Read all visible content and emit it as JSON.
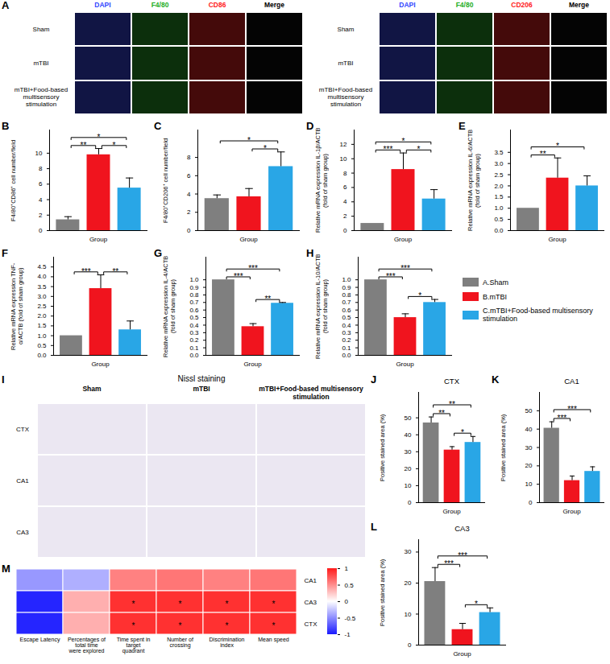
{
  "chart_data": [
    {
      "type": "legend",
      "legend": "right",
      "series": [
        {
          "name": "A.Sham",
          "color": "#7f7f7f"
        },
        {
          "name": "B.mTBI",
          "color": "#f0141e"
        },
        {
          "name": "C.mTBI+Food-based multisensory stimulation",
          "color": "#29a6e6"
        }
      ]
    },
    {
      "panel": "B",
      "type": "bar",
      "ylabel": "F4/80⁺CD86⁺ cell number/field",
      "xlabel": "Group",
      "tick_labels": "y",
      "values": [
        1.4,
        9.8,
        5.5
      ],
      "errors": [
        0.4,
        0.8,
        1.3
      ],
      "ylim": [
        0,
        13
      ],
      "yticks": [
        0,
        2,
        4,
        6,
        8,
        10
      ],
      "significance": [
        {
          "from": 0,
          "to": 1,
          "label": "**"
        },
        {
          "from": 1,
          "to": 2,
          "label": "*"
        },
        {
          "from": 0,
          "to": 2,
          "label": "*"
        }
      ]
    },
    {
      "panel": "C",
      "type": "bar",
      "ylabel": "F4/80⁺CD206⁺ cell number/field",
      "xlabel": "Group",
      "tick_labels": "y",
      "values": [
        3.5,
        3.7,
        7.0
      ],
      "errors": [
        0.4,
        0.9,
        1.6
      ],
      "ylim": [
        0,
        11
      ],
      "yticks": [
        0,
        2,
        4,
        6,
        8
      ],
      "significance": [
        {
          "from": 1,
          "to": 2,
          "label": "*"
        },
        {
          "from": 0,
          "to": 2,
          "label": "*"
        }
      ]
    },
    {
      "panel": "D",
      "type": "bar",
      "ylabel": "Relative mRNA expression IL-1β/ACTB (fold of sham group)",
      "xlabel": "Group",
      "tick_labels": "y",
      "values": [
        1.0,
        8.5,
        4.4
      ],
      "errors": [
        0,
        2.3,
        1.3
      ],
      "ylim": [
        0,
        14
      ],
      "yticks": [
        0,
        2,
        4,
        6,
        8,
        10,
        12
      ],
      "significance": [
        {
          "from": 0,
          "to": 1,
          "label": "***"
        },
        {
          "from": 1,
          "to": 2,
          "label": "*"
        },
        {
          "from": 0,
          "to": 2,
          "label": "*"
        }
      ]
    },
    {
      "panel": "E",
      "type": "bar",
      "ylabel": "Relative mRNA expression IL-6/ACTB (fold of sham group)",
      "xlabel": "Group",
      "tick_labels": "y",
      "values": [
        1.0,
        2.35,
        2.0
      ],
      "errors": [
        0,
        0.9,
        0.45
      ],
      "ylim": [
        0,
        4.5
      ],
      "yticks": [
        {
          "value": 0,
          "label": "0.0"
        },
        0.5,
        {
          "value": 1,
          "label": "1.0"
        },
        1.5,
        {
          "value": 2,
          "label": "2.0"
        },
        2.5,
        {
          "value": 3,
          "label": "3.0"
        },
        3.5
      ],
      "significance": [
        {
          "from": 0,
          "to": 1,
          "label": "**"
        },
        {
          "from": 0,
          "to": 2,
          "label": "*"
        }
      ]
    },
    {
      "panel": "F",
      "type": "bar",
      "ylabel": "Relative mRNA expression TNF-α/ACTB (fold of sham group)",
      "xlabel": "Group",
      "tick_labels": "y",
      "values": [
        1.0,
        3.4,
        1.3
      ],
      "errors": [
        0,
        0.7,
        0.45
      ],
      "ylim": [
        0,
        5
      ],
      "yticks": [
        {
          "value": 0,
          "label": "0.0"
        },
        0.5,
        {
          "value": 1,
          "label": "1.0"
        },
        1.5,
        {
          "value": 2,
          "label": "2.0"
        },
        2.5,
        {
          "value": 3,
          "label": "3.0"
        },
        3.5,
        {
          "value": 4,
          "label": "4.0"
        },
        4.5
      ],
      "significance": [
        {
          "from": 0,
          "to": 1,
          "label": "***"
        },
        {
          "from": 1,
          "to": 2,
          "label": "**"
        }
      ]
    },
    {
      "panel": "G",
      "type": "bar",
      "ylabel": "Relative mRNA expression IL-4/ACTB (fold of sham group)",
      "xlabel": "Group",
      "tick_labels": "y",
      "values": [
        1.0,
        0.38,
        0.69
      ],
      "errors": [
        0,
        0.04,
        0.01
      ],
      "ylim": [
        0,
        1.3
      ],
      "yticks": [
        {
          "value": 0,
          "label": "0.0"
        },
        0.1,
        0.2,
        0.3,
        0.4,
        0.5,
        0.6,
        0.7,
        0.8,
        0.9,
        {
          "value": 1,
          "label": "1.0"
        }
      ],
      "significance": [
        {
          "from": 0,
          "to": 1,
          "label": "***"
        },
        {
          "from": 1,
          "to": 2,
          "label": "**"
        },
        {
          "from": 0,
          "to": 2,
          "label": "***"
        }
      ]
    },
    {
      "panel": "H",
      "type": "bar",
      "ylabel": "Relative mRNA expression IL-10/ACTB (fold of sham group)",
      "xlabel": "Group",
      "tick_labels": "y",
      "values": [
        1.0,
        0.5,
        0.7
      ],
      "errors": [
        0,
        0.05,
        0.04
      ],
      "ylim": [
        0,
        1.3
      ],
      "yticks": [
        {
          "value": 0,
          "label": "0.0"
        },
        0.1,
        0.2,
        0.3,
        0.4,
        0.5,
        0.6,
        0.7,
        0.8,
        0.9,
        {
          "value": 1,
          "label": "1.0"
        }
      ],
      "significance": [
        {
          "from": 0,
          "to": 1,
          "label": "***"
        },
        {
          "from": 1,
          "to": 2,
          "label": "*"
        },
        {
          "from": 0,
          "to": 2,
          "label": "***"
        }
      ]
    },
    {
      "panel": "J",
      "type": "bar",
      "title": "CTX",
      "ylabel": "Positive stained area (%)",
      "xlabel": "Group",
      "tick_labels": "y",
      "values": [
        47,
        31,
        35.5
      ],
      "errors": [
        3.5,
        2,
        3.5
      ],
      "ylim": [
        0,
        65
      ],
      "yticks": [
        0,
        10,
        20,
        30,
        40,
        50
      ],
      "significance": [
        {
          "from": 0,
          "to": 1,
          "label": "**"
        },
        {
          "from": 1,
          "to": 2,
          "label": "*"
        },
        {
          "from": 0,
          "to": 2,
          "label": "**"
        }
      ]
    },
    {
      "panel": "K",
      "type": "bar",
      "title": "CA1",
      "ylabel": "Positive stained area (%)",
      "xlabel": "Group",
      "tick_labels": "y",
      "values": [
        40.5,
        12,
        17
      ],
      "errors": [
        3.5,
        2.5,
        2.5
      ],
      "ylim": [
        0,
        60
      ],
      "yticks": [
        0,
        10,
        20,
        30,
        40,
        50
      ],
      "significance": [
        {
          "from": 0,
          "to": 1,
          "label": "***"
        },
        {
          "from": 0,
          "to": 2,
          "label": "***"
        }
      ]
    },
    {
      "panel": "L",
      "type": "bar",
      "title": "CA3",
      "ylabel": "Positive stained area (%)",
      "xlabel": "Group",
      "tick_labels": "y",
      "values": [
        20.5,
        5,
        10.5
      ],
      "errors": [
        4.5,
        2,
        1.5
      ],
      "ylim": [
        0,
        34
      ],
      "yticks": [
        0,
        10,
        20,
        30
      ],
      "significance": [
        {
          "from": 0,
          "to": 1,
          "label": "***"
        },
        {
          "from": 1,
          "to": 2,
          "label": "*"
        },
        {
          "from": 0,
          "to": 2,
          "label": "***"
        }
      ]
    },
    {
      "panel": "M",
      "type": "heatmap",
      "columns": [
        "Escape Latency",
        "Percentages of total time were explored",
        "Time spent in target quadrant",
        "Number of crossing",
        "Discrimination index",
        "Mean speed"
      ],
      "rows": [
        "CA1",
        "CA3",
        "CTX"
      ],
      "values": [
        [
          -0.45,
          -0.35,
          0.55,
          0.6,
          0.55,
          0.6
        ],
        [
          -0.95,
          0.35,
          0.9,
          0.9,
          0.9,
          0.9
        ],
        [
          -0.95,
          0.35,
          0.9,
          0.9,
          0.9,
          0.9
        ]
      ],
      "annotations": [
        [
          null,
          null,
          null,
          null,
          null,
          null
        ],
        [
          null,
          null,
          "*",
          "*",
          "*",
          "*"
        ],
        [
          null,
          null,
          "*",
          "*",
          "*",
          "*"
        ]
      ],
      "colorbar": {
        "range": [
          -1,
          1
        ],
        "ticks": [
          -1,
          -0.5,
          0,
          0.5,
          1
        ],
        "colors": [
          "#1a1aff",
          "#ffffff",
          "#ff1a1a"
        ]
      }
    }
  ],
  "images": {
    "A": {
      "panel": "A",
      "grids": [
        {
          "columns": [
            {
              "label": "DAPI",
              "color": "#3346ff"
            },
            {
              "label": "F4/80",
              "color": "#1fae1f"
            },
            {
              "label": "CD86",
              "color": "#ff1a1a"
            },
            {
              "label": "Merge",
              "color": "#000000"
            }
          ],
          "rows": [
            "Sham",
            "mTBI",
            "mTBI+Food-based multisensory stimulation"
          ]
        },
        {
          "columns": [
            {
              "label": "DAPI",
              "color": "#3346ff"
            },
            {
              "label": "F4/80",
              "color": "#1fae1f"
            },
            {
              "label": "CD206",
              "color": "#ff1a1a"
            },
            {
              "label": "Merge",
              "color": "#000000"
            }
          ],
          "rows": [
            "Sham",
            "mTBI",
            "mTBI+Food-based multisensory stimulation"
          ]
        }
      ]
    },
    "I": {
      "panel": "I",
      "title": "Nissl staining",
      "columns": [
        "Sham",
        "mTBI",
        "mTBI+Food-based multisensory stimulation"
      ],
      "rows": [
        "CTX",
        "CA1",
        "CA3"
      ]
    }
  }
}
